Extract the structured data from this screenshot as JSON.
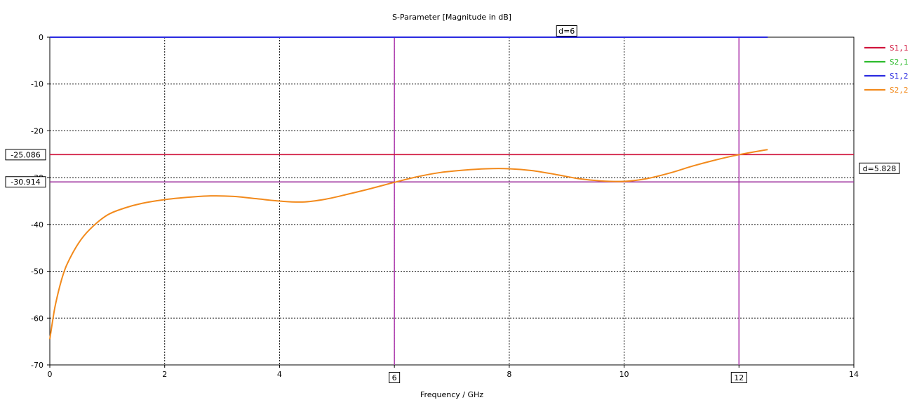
{
  "chart_data": {
    "type": "line",
    "title": "S-Parameter [Magnitude in dB]",
    "xlabel": "Frequency / GHz",
    "ylabel": "",
    "xlim": [
      0,
      14
    ],
    "ylim": [
      -70,
      0
    ],
    "x_ticks": [
      0,
      2,
      4,
      6,
      8,
      10,
      12,
      14
    ],
    "y_ticks": [
      0,
      -10,
      -20,
      -30,
      -40,
      -50,
      -60,
      -70
    ],
    "grid": true,
    "legend_position": "right",
    "series": [
      {
        "name": "S1,1",
        "color": "#d0143c",
        "x": [],
        "y": []
      },
      {
        "name": "S2,1",
        "color": "#2dbb2d",
        "x": [],
        "y": []
      },
      {
        "name": "S1,2",
        "color": "#2a2ae0",
        "x": [
          0,
          12.5
        ],
        "y": [
          0,
          0
        ]
      },
      {
        "name": "S2,2",
        "color": "#f28a1c",
        "x": [
          0,
          0.05,
          0.1,
          0.2,
          0.3,
          0.5,
          0.7,
          1.0,
          1.3,
          1.6,
          2.0,
          2.4,
          2.8,
          3.2,
          3.6,
          4.0,
          4.4,
          4.8,
          5.2,
          5.6,
          6.0,
          6.4,
          6.8,
          7.2,
          7.6,
          8.0,
          8.4,
          8.8,
          9.2,
          9.6,
          10.0,
          10.4,
          10.8,
          11.2,
          11.6,
          12.0,
          12.5
        ],
        "y": [
          -64.5,
          -60.5,
          -57.0,
          -52.0,
          -48.5,
          -44.0,
          -41.0,
          -38.0,
          -36.5,
          -35.5,
          -34.7,
          -34.2,
          -33.9,
          -34.0,
          -34.5,
          -35.0,
          -35.2,
          -34.6,
          -33.5,
          -32.3,
          -31.0,
          -29.8,
          -28.9,
          -28.4,
          -28.1,
          -28.1,
          -28.5,
          -29.3,
          -30.2,
          -30.7,
          -30.8,
          -30.2,
          -29.0,
          -27.5,
          -26.2,
          -25.1,
          -24.0
        ]
      }
    ],
    "markers": {
      "vertical": [
        6,
        12
      ],
      "horizontal": [
        -25.086,
        -30.914
      ],
      "x_labels": [
        "6",
        "12"
      ],
      "y_labels": [
        "-25.086",
        "-30.914"
      ],
      "x_delta_label": "d=6",
      "y_delta_label": "d=5.828",
      "vertical_color": "#b040b0",
      "horizontal_colors": [
        "#d0143c",
        "#9a2a9a"
      ]
    }
  }
}
